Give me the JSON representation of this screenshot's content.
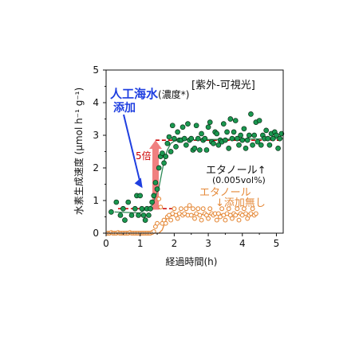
{
  "chart_data": {
    "type": "scatter",
    "xlabel": "経過時間(h)",
    "ylabel": "水素生成速度 (μmol h⁻¹ g⁻¹)",
    "xlim": [
      0,
      5.2
    ],
    "ylim": [
      0,
      5
    ],
    "xticks": [
      0,
      1,
      2,
      3,
      4,
      5
    ],
    "yticks": [
      0,
      1,
      2,
      3,
      4,
      5
    ],
    "grid": false,
    "colors": {
      "seawater": "#1a9850",
      "seawater_fit": "#2e8b57",
      "control": "#e58a3a",
      "guide": "#cc0000",
      "arrow_fold": "#f08080",
      "arrow_blue": "#1f3fe0",
      "text_dark": "#111111"
    },
    "series": [
      {
        "label": "エタノール↑(0.005vol%)",
        "marker": "filled-circle",
        "x": [
          0.15,
          0.3,
          0.42,
          0.5,
          0.55,
          0.65,
          0.75,
          0.85,
          0.9,
          0.95,
          1.0,
          1.05,
          1.1,
          1.15,
          1.2,
          1.25,
          1.3,
          1.35,
          1.4,
          1.45,
          1.5,
          1.55,
          1.6,
          1.65,
          1.7,
          1.75,
          1.8,
          1.85,
          1.9,
          1.95,
          2.0,
          2.05,
          2.1,
          2.15,
          2.2,
          2.25,
          2.3,
          2.35,
          2.4,
          2.45,
          2.5,
          2.55,
          2.6,
          2.65,
          2.7,
          2.75,
          2.8,
          2.85,
          2.9,
          2.95,
          3.0,
          3.05,
          3.1,
          3.15,
          3.2,
          3.25,
          3.3,
          3.35,
          3.4,
          3.45,
          3.5,
          3.55,
          3.6,
          3.65,
          3.7,
          3.75,
          3.8,
          3.85,
          3.9,
          3.95,
          4.0,
          4.05,
          4.1,
          4.15,
          4.2,
          4.25,
          4.3,
          4.35,
          4.4,
          4.45,
          4.5,
          4.55,
          4.6,
          4.65,
          4.7,
          4.75,
          4.8,
          4.85,
          4.9,
          4.95,
          5.0,
          5.05,
          5.1,
          5.15
        ],
        "y": [
          0.65,
          0.95,
          0.55,
          0.75,
          0.4,
          0.95,
          0.55,
          0.75,
          1.15,
          0.55,
          1.15,
          0.75,
          0.55,
          0.4,
          0.75,
          0.55,
          0.75,
          0.95,
          1.15,
          1.55,
          1.35,
          2.0,
          2.35,
          2.45,
          2.15,
          2.35,
          2.75,
          2.95,
          2.5,
          3.3,
          2.9,
          2.65,
          3.1,
          2.85,
          2.85,
          3.25,
          2.9,
          2.7,
          3.35,
          2.85,
          2.9,
          2.55,
          2.6,
          3.3,
          2.9,
          2.55,
          3.05,
          2.85,
          2.9,
          2.55,
          3.25,
          3.4,
          2.8,
          2.75,
          3.1,
          3.05,
          2.7,
          2.85,
          2.8,
          3.35,
          2.85,
          3.1,
          2.6,
          3.5,
          2.9,
          3.1,
          3.45,
          2.9,
          2.7,
          3.0,
          2.85,
          3.2,
          2.6,
          2.85,
          3.0,
          3.65,
          2.7,
          3.0,
          3.4,
          2.8,
          3.45,
          2.7,
          3.0,
          2.9,
          3.15,
          2.9,
          2.7,
          3.05,
          2.9,
          3.1,
          3.0,
          2.6,
          2.9,
          3.05
        ]
      },
      {
        "label": "エタノール↓添加無し",
        "marker": "open-circle",
        "x": [
          0.05,
          0.1,
          0.15,
          0.2,
          0.25,
          0.3,
          0.35,
          0.4,
          0.45,
          0.5,
          0.55,
          0.6,
          0.65,
          0.7,
          0.75,
          0.8,
          0.85,
          0.9,
          0.95,
          1.0,
          1.05,
          1.1,
          1.15,
          1.2,
          1.25,
          1.3,
          1.35,
          1.4,
          1.45,
          1.5,
          1.55,
          1.6,
          1.65,
          1.7,
          1.75,
          1.8,
          1.85,
          1.9,
          1.95,
          2.0,
          2.05,
          2.1,
          2.15,
          2.2,
          2.25,
          2.3,
          2.35,
          2.4,
          2.45,
          2.5,
          2.55,
          2.6,
          2.65,
          2.7,
          2.75,
          2.8,
          2.85,
          2.9,
          2.95,
          3.0,
          3.05,
          3.1,
          3.15,
          3.2,
          3.25,
          3.3,
          3.35,
          3.4,
          3.45,
          3.5,
          3.55,
          3.6,
          3.65,
          3.7,
          3.75,
          3.8,
          3.85,
          3.9,
          3.95,
          4.0,
          4.05,
          4.1,
          4.15,
          4.2,
          4.25,
          4.3,
          4.35,
          4.4
        ],
        "y": [
          0.0,
          0.0,
          0.02,
          0.0,
          0.0,
          0.0,
          0.02,
          0.0,
          0.0,
          0.0,
          0.0,
          0.0,
          0.0,
          0.02,
          0.0,
          0.0,
          0.0,
          0.0,
          0.0,
          0.0,
          0.0,
          0.0,
          0.0,
          0.0,
          0.0,
          0.0,
          0.02,
          0.05,
          0.2,
          0.3,
          1.05,
          0.8,
          0.3,
          0.4,
          0.3,
          0.5,
          0.55,
          0.4,
          0.6,
          0.75,
          0.55,
          0.45,
          0.6,
          0.75,
          0.55,
          0.6,
          0.75,
          0.55,
          0.85,
          0.55,
          0.75,
          0.45,
          0.6,
          0.75,
          0.55,
          0.4,
          0.75,
          0.6,
          0.55,
          0.45,
          0.75,
          0.6,
          0.55,
          0.6,
          0.4,
          0.6,
          0.5,
          0.75,
          0.55,
          0.4,
          0.6,
          0.75,
          0.55,
          0.45,
          0.6,
          0.55,
          0.75,
          0.4,
          0.6,
          0.55,
          0.75,
          0.6,
          0.45,
          0.55,
          0.6,
          0.75,
          0.55,
          0.6
        ]
      }
    ],
    "fit_lines": [
      {
        "series": 0,
        "x": [
          0.25,
          1.0,
          1.35,
          1.55,
          1.7,
          1.8,
          1.9,
          2.0,
          2.2,
          5.2
        ],
        "y": [
          0.65,
          0.62,
          0.85,
          1.4,
          2.2,
          2.55,
          2.75,
          2.82,
          2.86,
          2.9
        ]
      },
      {
        "series": 1,
        "x": [
          0.05,
          1.55,
          1.65,
          1.72,
          1.8,
          2.0,
          2.5,
          4.4
        ],
        "y": [
          0.0,
          0.0,
          0.1,
          0.3,
          0.5,
          0.55,
          0.57,
          0.58
        ]
      }
    ],
    "reference_lines": [
      {
        "y": 0.75,
        "x": [
          0.35,
          1.95
        ]
      },
      {
        "y": 2.85,
        "x": [
          1.45,
          5.2
        ]
      }
    ],
    "annotations": {
      "bracket": "[紫外-可視光]",
      "seawater_main": "人工海水",
      "seawater_paren": "(濃度*)",
      "seawater_add": "添加",
      "fold": "5倍",
      "ethanol_up": "エタノール↑",
      "ethanol_up_conc": "(0.005vol%)",
      "ethanol_none": "エタノール",
      "ethanol_none_2": "↓添加無し"
    }
  }
}
